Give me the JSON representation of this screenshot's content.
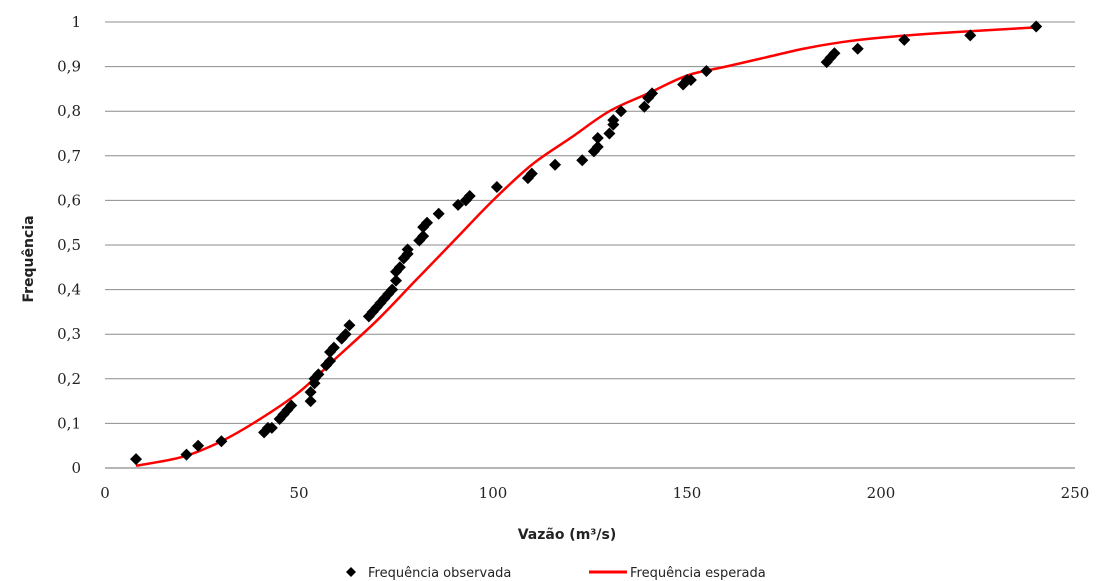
{
  "chart_data": {
    "type": "scatter",
    "xlabel": "Vazão (m³/s)",
    "ylabel": "Frequência",
    "xlim": [
      0,
      250
    ],
    "ylim": [
      0,
      1
    ],
    "x_ticks": [
      "0",
      "50",
      "100",
      "150",
      "200",
      "250"
    ],
    "y_ticks": [
      "0",
      "0,1",
      "0,2",
      "0,3",
      "0,4",
      "0,5",
      "0,6",
      "0,7",
      "0,8",
      "0,9",
      "1"
    ],
    "grid": "horizontal",
    "legend_position": "bottom",
    "series": [
      {
        "name": "Frequência observada",
        "kind": "scatter",
        "marker": "diamond",
        "color": "#000000",
        "points": [
          [
            8,
            0.02
          ],
          [
            21,
            0.03
          ],
          [
            24,
            0.05
          ],
          [
            30,
            0.06
          ],
          [
            41,
            0.08
          ],
          [
            42,
            0.09
          ],
          [
            43,
            0.09
          ],
          [
            45,
            0.11
          ],
          [
            46,
            0.12
          ],
          [
            47,
            0.13
          ],
          [
            48,
            0.14
          ],
          [
            53,
            0.15
          ],
          [
            53,
            0.17
          ],
          [
            54,
            0.19
          ],
          [
            54,
            0.2
          ],
          [
            55,
            0.21
          ],
          [
            57,
            0.23
          ],
          [
            58,
            0.24
          ],
          [
            58,
            0.26
          ],
          [
            59,
            0.27
          ],
          [
            61,
            0.29
          ],
          [
            62,
            0.3
          ],
          [
            63,
            0.32
          ],
          [
            68,
            0.34
          ],
          [
            69,
            0.35
          ],
          [
            70,
            0.36
          ],
          [
            71,
            0.37
          ],
          [
            72,
            0.38
          ],
          [
            73,
            0.39
          ],
          [
            74,
            0.4
          ],
          [
            75,
            0.42
          ],
          [
            75,
            0.44
          ],
          [
            76,
            0.45
          ],
          [
            77,
            0.47
          ],
          [
            78,
            0.48
          ],
          [
            78,
            0.49
          ],
          [
            81,
            0.51
          ],
          [
            82,
            0.52
          ],
          [
            82,
            0.54
          ],
          [
            83,
            0.55
          ],
          [
            86,
            0.57
          ],
          [
            91,
            0.59
          ],
          [
            93,
            0.6
          ],
          [
            94,
            0.61
          ],
          [
            101,
            0.63
          ],
          [
            109,
            0.65
          ],
          [
            110,
            0.66
          ],
          [
            116,
            0.68
          ],
          [
            123,
            0.69
          ],
          [
            126,
            0.71
          ],
          [
            127,
            0.72
          ],
          [
            127,
            0.74
          ],
          [
            130,
            0.75
          ],
          [
            131,
            0.77
          ],
          [
            131,
            0.78
          ],
          [
            133,
            0.8
          ],
          [
            139,
            0.81
          ],
          [
            140,
            0.83
          ],
          [
            141,
            0.84
          ],
          [
            149,
            0.86
          ],
          [
            150,
            0.87
          ],
          [
            151,
            0.87
          ],
          [
            155,
            0.89
          ],
          [
            186,
            0.91
          ],
          [
            187,
            0.92
          ],
          [
            188,
            0.93
          ],
          [
            194,
            0.94
          ],
          [
            206,
            0.96
          ],
          [
            223,
            0.97
          ],
          [
            240,
            0.99
          ]
        ]
      },
      {
        "name": "Frequência esperada",
        "kind": "line",
        "color": "#ff0000",
        "points": [
          [
            8,
            0.005
          ],
          [
            20,
            0.025
          ],
          [
            30,
            0.06
          ],
          [
            40,
            0.11
          ],
          [
            50,
            0.17
          ],
          [
            60,
            0.25
          ],
          [
            70,
            0.33
          ],
          [
            80,
            0.42
          ],
          [
            90,
            0.51
          ],
          [
            100,
            0.6
          ],
          [
            110,
            0.68
          ],
          [
            120,
            0.74
          ],
          [
            130,
            0.8
          ],
          [
            140,
            0.84
          ],
          [
            150,
            0.88
          ],
          [
            160,
            0.9
          ],
          [
            170,
            0.92
          ],
          [
            180,
            0.94
          ],
          [
            190,
            0.955
          ],
          [
            200,
            0.965
          ],
          [
            215,
            0.975
          ],
          [
            230,
            0.983
          ],
          [
            240,
            0.988
          ]
        ]
      }
    ]
  }
}
